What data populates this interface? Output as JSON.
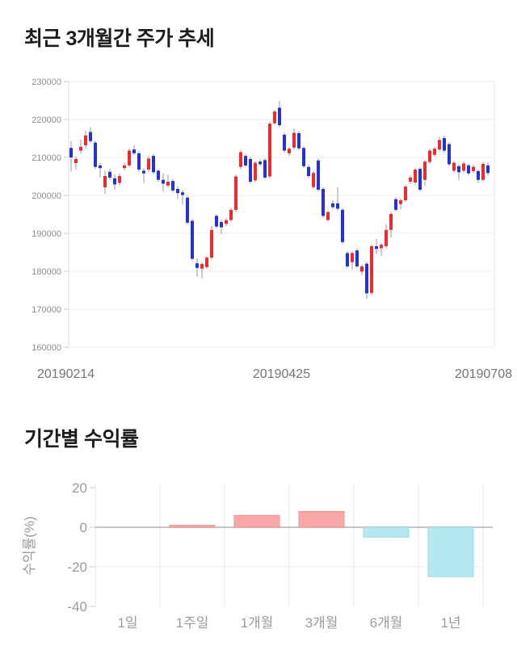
{
  "chart_data": [
    {
      "type": "candlestick",
      "title": "최근 3개월간 주가 추세",
      "xlabel": "",
      "ylabel": "",
      "ylim": [
        160000,
        230000
      ],
      "y_ticks": [
        230000,
        220000,
        210000,
        200000,
        190000,
        180000,
        170000,
        160000
      ],
      "x_tick_labels": [
        "20190214",
        "20190425",
        "20190708"
      ],
      "grid": "horizontal",
      "colors": {
        "up": "#ec2b2e",
        "down": "#2433cb",
        "wick": "#999999"
      },
      "series": {
        "name": "주가",
        "ohlc": [
          [
            212500,
            214300,
            206300,
            210000
          ],
          [
            208500,
            210200,
            206800,
            209600
          ],
          [
            211800,
            214700,
            211000,
            212800
          ],
          [
            213200,
            217100,
            212400,
            215800
          ],
          [
            216700,
            217900,
            213800,
            214300
          ],
          [
            213900,
            214400,
            207000,
            207500
          ],
          [
            207900,
            208500,
            204700,
            207200
          ],
          [
            202100,
            206400,
            200400,
            205100
          ],
          [
            206200,
            207000,
            204000,
            204700
          ],
          [
            204500,
            205500,
            201500,
            202900
          ],
          [
            203300,
            205800,
            202600,
            205100
          ],
          [
            207200,
            208600,
            206600,
            207900
          ],
          [
            207900,
            212400,
            207400,
            211800
          ],
          [
            212100,
            213200,
            210600,
            211100
          ],
          [
            211100,
            211600,
            206200,
            206800
          ],
          [
            206500,
            207200,
            203300,
            205800
          ],
          [
            206800,
            210400,
            206200,
            209700
          ],
          [
            210400,
            210900,
            205600,
            206100
          ],
          [
            206500,
            207000,
            203600,
            204100
          ],
          [
            204100,
            205800,
            201000,
            203100
          ],
          [
            202600,
            205400,
            202100,
            203600
          ],
          [
            203800,
            204300,
            200800,
            201300
          ],
          [
            201700,
            202400,
            199000,
            200600
          ],
          [
            200800,
            201300,
            197600,
            200100
          ],
          [
            199400,
            199900,
            192300,
            192800
          ],
          [
            193300,
            193800,
            182800,
            183300
          ],
          [
            182100,
            183400,
            178600,
            180900
          ],
          [
            180700,
            182400,
            178100,
            181900
          ],
          [
            181100,
            184100,
            180600,
            183600
          ],
          [
            183600,
            191900,
            183100,
            190900
          ],
          [
            194600,
            195100,
            191300,
            191800
          ],
          [
            193000,
            193500,
            189800,
            191600
          ],
          [
            192500,
            194000,
            192000,
            193500
          ],
          [
            193500,
            196700,
            193000,
            196200
          ],
          [
            196200,
            205500,
            195700,
            205000
          ],
          [
            207500,
            212000,
            206900,
            211400
          ],
          [
            210400,
            211000,
            207400,
            207900
          ],
          [
            209600,
            210100,
            203100,
            203600
          ],
          [
            204000,
            209100,
            203500,
            208600
          ],
          [
            208900,
            209500,
            207700,
            208200
          ],
          [
            209300,
            209800,
            204200,
            204700
          ],
          [
            205000,
            219400,
            204500,
            218900
          ],
          [
            219000,
            222600,
            218500,
            222100
          ],
          [
            223100,
            224900,
            218000,
            218500
          ],
          [
            216000,
            216500,
            211300,
            211800
          ],
          [
            211100,
            212800,
            210400,
            212300
          ],
          [
            212600,
            217600,
            212100,
            216500
          ],
          [
            216400,
            216900,
            211900,
            212400
          ],
          [
            212500,
            213000,
            207200,
            207700
          ],
          [
            207500,
            208000,
            204600,
            205100
          ],
          [
            202200,
            206400,
            201700,
            205900
          ],
          [
            209200,
            209700,
            201000,
            201500
          ],
          [
            201700,
            202200,
            194100,
            194600
          ],
          [
            193500,
            196100,
            193000,
            195600
          ],
          [
            197900,
            198800,
            196400,
            196900
          ],
          [
            197900,
            202200,
            196000,
            196500
          ],
          [
            196200,
            196700,
            187200,
            187700
          ],
          [
            184800,
            185300,
            180800,
            181300
          ],
          [
            182400,
            185300,
            180400,
            184800
          ],
          [
            185500,
            186000,
            180800,
            181300
          ],
          [
            179900,
            181800,
            178900,
            181300
          ],
          [
            182000,
            182500,
            172800,
            174200
          ],
          [
            174300,
            187100,
            173800,
            186600
          ],
          [
            186600,
            188500,
            184500,
            185900
          ],
          [
            186100,
            187500,
            184000,
            187000
          ],
          [
            186600,
            192400,
            186100,
            190900
          ],
          [
            190900,
            195600,
            188900,
            195100
          ],
          [
            199000,
            199500,
            195700,
            196200
          ],
          [
            197700,
            199200,
            196300,
            198700
          ],
          [
            198700,
            202800,
            198200,
            202300
          ],
          [
            203600,
            205200,
            203100,
            204700
          ],
          [
            203400,
            207300,
            202900,
            206800
          ],
          [
            207000,
            207500,
            201000,
            201500
          ],
          [
            204100,
            209400,
            202500,
            208900
          ],
          [
            208800,
            212300,
            208300,
            211800
          ],
          [
            210700,
            212800,
            210200,
            212300
          ],
          [
            212100,
            215400,
            211600,
            214600
          ],
          [
            215100,
            215800,
            211300,
            211800
          ],
          [
            213500,
            214000,
            207700,
            208200
          ],
          [
            206500,
            209100,
            206000,
            208600
          ],
          [
            207700,
            208200,
            204000,
            206100
          ],
          [
            206500,
            208900,
            206000,
            208400
          ],
          [
            207900,
            208400,
            205300,
            205800
          ],
          [
            206400,
            208000,
            205900,
            207500
          ],
          [
            206400,
            206900,
            203300,
            204100
          ],
          [
            204100,
            208800,
            203600,
            208300
          ],
          [
            207900,
            208700,
            205200,
            205900
          ]
        ]
      }
    },
    {
      "type": "bar",
      "title": "기간별 수익률",
      "xlabel": "",
      "ylabel": "수익률(%)",
      "categories": [
        "1일",
        "1주일",
        "1개월",
        "3개월",
        "6개월",
        "1년"
      ],
      "values": [
        0,
        1,
        6,
        8,
        -5,
        -25
      ],
      "ylim": [
        -40,
        20
      ],
      "y_ticks": [
        20,
        0,
        -20,
        -40
      ],
      "grid": "vertical",
      "legend": "none",
      "colors": {
        "positive": "#f9a7a7",
        "positive_border": "#ef9494",
        "negative": "#b4e9f2",
        "negative_border": "#9fd6e2"
      }
    }
  ]
}
